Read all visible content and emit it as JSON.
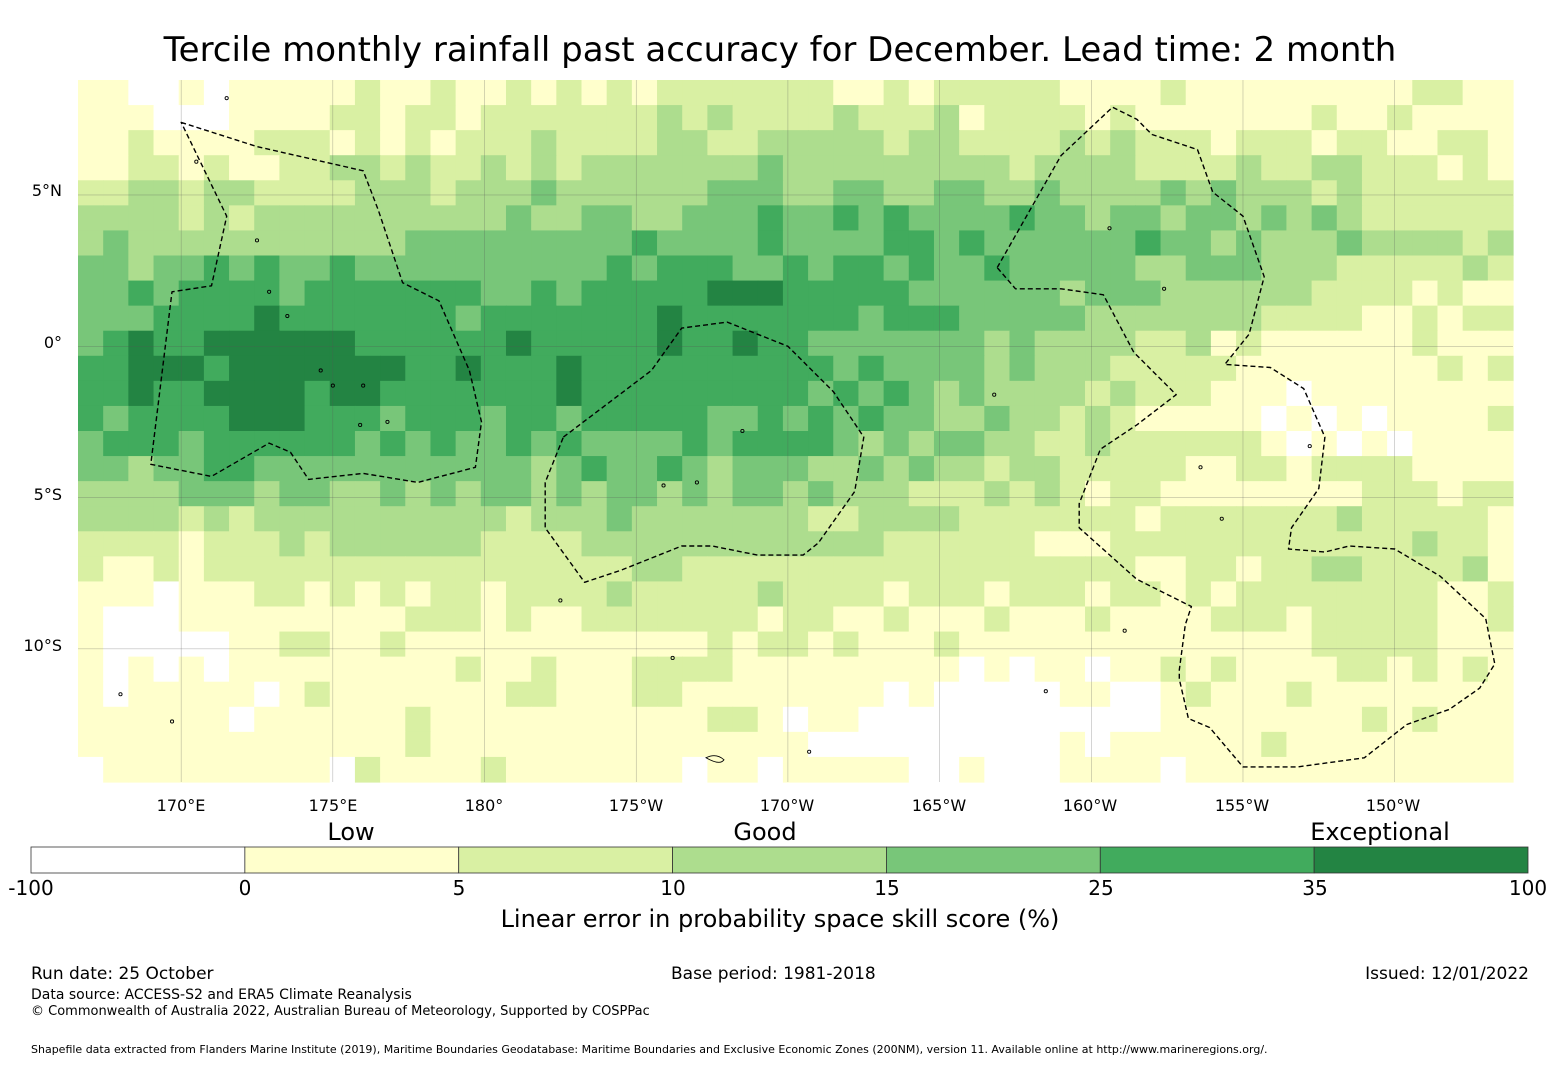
{
  "title": "Tercile monthly rainfall past accuracy for December. Lead time: 2 month",
  "lat_labels": [
    "5°N",
    "0°",
    "5°S",
    "10°S"
  ],
  "lon_labels": [
    "170°E",
    "175°E",
    "180°",
    "175°W",
    "170°W",
    "165°W",
    "160°W",
    "155°W",
    "150°W"
  ],
  "map_extents": {
    "lon_min_east": 166.6,
    "lon_max_east": 213.9,
    "lat_max": 8.8,
    "lat_min": -14.4
  },
  "lat_values": [
    5,
    0,
    -5,
    -10
  ],
  "lon_values_east": [
    170,
    175,
    180,
    185,
    190,
    195,
    200,
    205,
    210
  ],
  "skill_categories": [
    "Low",
    "Good",
    "Exceptional"
  ],
  "colorbar": {
    "ticks": [
      "-100",
      "0",
      "5",
      "10",
      "15",
      "25",
      "35",
      "100"
    ],
    "colors": [
      "#ffffff",
      "#ffffcc",
      "#d9f0a3",
      "#addd8e",
      "#78c679",
      "#41ab5d",
      "#238443"
    ],
    "label": "Linear error in probability space skill score (%)"
  },
  "eez_zones": [
    {
      "name": "zone-west",
      "vertices": [
        [
          170.0,
          7.4
        ],
        [
          172.5,
          6.6
        ],
        [
          176.0,
          5.8
        ],
        [
          176.5,
          4.5
        ],
        [
          177.3,
          2.1
        ],
        [
          178.5,
          1.5
        ],
        [
          179.5,
          -0.8
        ],
        [
          179.9,
          -2.5
        ],
        [
          179.7,
          -4.0
        ],
        [
          177.8,
          -4.5
        ],
        [
          176.0,
          -4.2
        ],
        [
          174.2,
          -4.4
        ],
        [
          173.6,
          -3.5
        ],
        [
          172.9,
          -3.2
        ],
        [
          171.0,
          -4.3
        ],
        [
          169.0,
          -3.9
        ],
        [
          169.7,
          1.8
        ],
        [
          171.0,
          2.0
        ],
        [
          171.5,
          4.3
        ]
      ]
    },
    {
      "name": "zone-central",
      "vertices": [
        [
          182.6,
          -3.0
        ],
        [
          185.5,
          -0.8
        ],
        [
          186.5,
          0.6
        ],
        [
          188.0,
          0.8
        ],
        [
          190.0,
          0.0
        ],
        [
          191.5,
          -1.5
        ],
        [
          192.5,
          -3.0
        ],
        [
          192.2,
          -4.8
        ],
        [
          191.0,
          -6.5
        ],
        [
          190.5,
          -6.9
        ],
        [
          189.0,
          -6.9
        ],
        [
          187.5,
          -6.6
        ],
        [
          186.5,
          -6.6
        ],
        [
          184.5,
          -7.4
        ],
        [
          183.3,
          -7.8
        ],
        [
          182.0,
          -6.0
        ],
        [
          182.0,
          -4.5
        ]
      ]
    },
    {
      "name": "zone-east",
      "vertices": [
        [
          196.9,
          2.6
        ],
        [
          199.0,
          6.3
        ],
        [
          200.7,
          7.9
        ],
        [
          201.5,
          7.5
        ],
        [
          202.0,
          7.0
        ],
        [
          203.5,
          6.5
        ],
        [
          204.0,
          5.1
        ],
        [
          205.0,
          4.3
        ],
        [
          205.7,
          2.3
        ],
        [
          205.2,
          0.4
        ],
        [
          204.4,
          -0.6
        ],
        [
          205.9,
          -0.7
        ],
        [
          207.0,
          -1.4
        ],
        [
          207.7,
          -3.0
        ],
        [
          207.5,
          -4.7
        ],
        [
          206.6,
          -6.0
        ],
        [
          206.5,
          -6.7
        ],
        [
          207.7,
          -6.8
        ],
        [
          208.5,
          -6.6
        ],
        [
          210.0,
          -6.7
        ],
        [
          211.5,
          -7.6
        ],
        [
          213.0,
          -9.0
        ],
        [
          213.3,
          -10.5
        ],
        [
          212.8,
          -11.3
        ],
        [
          211.8,
          -12.0
        ],
        [
          210.4,
          -12.5
        ],
        [
          209.0,
          -13.6
        ],
        [
          206.8,
          -13.9
        ],
        [
          205.0,
          -13.9
        ],
        [
          203.9,
          -12.6
        ],
        [
          203.2,
          -12.3
        ],
        [
          202.9,
          -11.0
        ],
        [
          202.9,
          -10.7
        ],
        [
          203.1,
          -9.2
        ],
        [
          203.3,
          -8.6
        ],
        [
          201.5,
          -7.7
        ],
        [
          199.6,
          -6.0
        ],
        [
          199.6,
          -5.2
        ],
        [
          200.3,
          -3.4
        ],
        [
          201.5,
          -2.6
        ],
        [
          202.8,
          -1.6
        ],
        [
          201.4,
          -0.2
        ],
        [
          200.4,
          1.7
        ],
        [
          199.0,
          1.9
        ],
        [
          197.5,
          1.9
        ]
      ]
    }
  ],
  "run_date": "Run date: 25 October",
  "base_period": "Base period: 1981-2018",
  "issued": "Issued: 12/01/2022",
  "data_source": "Data source: ACCESS-S2 and ERA5 Climate Reanalysis",
  "copyright": "© Commonwealth of Australia 2022, Australian Bureau of Meteorology, Supported by COSPPac",
  "shapefile_note": "Shapefile data extracted from Flanders Marine Institute (2019), Maritime Boundaries Geodatabase: Maritime Boundaries and Exclusive Economic Zones (200NM), version 11. Available online at http://www.marineregions.org/."
}
